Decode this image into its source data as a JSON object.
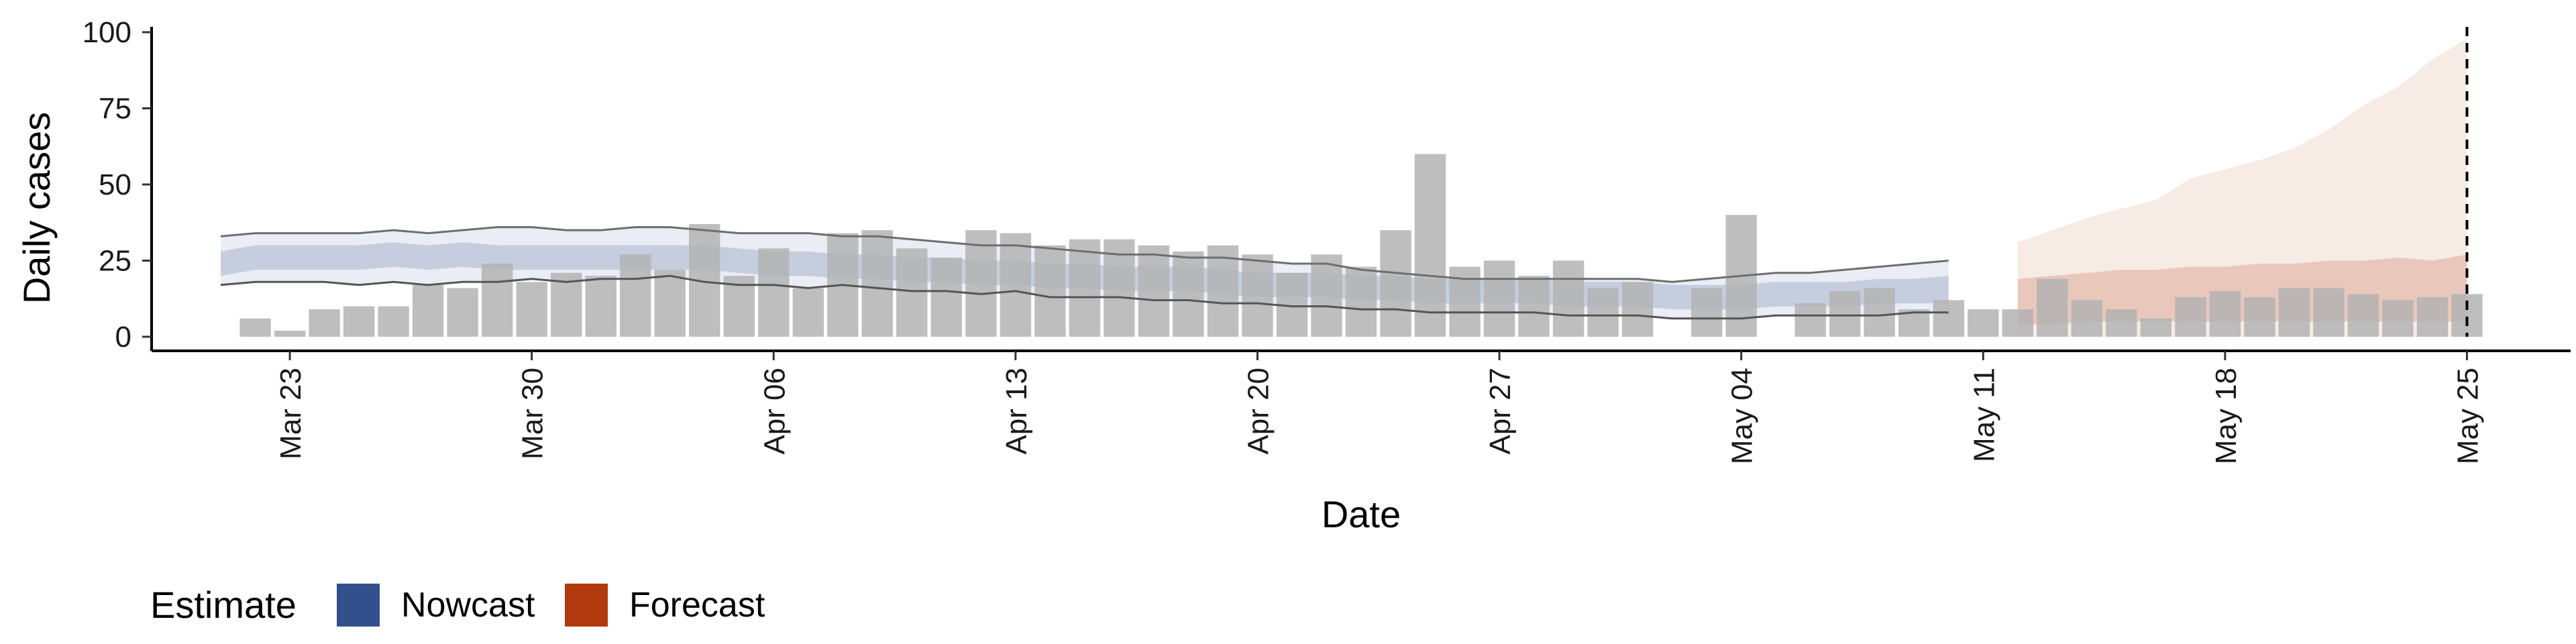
{
  "chart_data": {
    "type": "bar",
    "xlabel": "Date",
    "ylabel": "Daily cases",
    "ylim": [
      0,
      100
    ],
    "y_ticks": [
      0,
      25,
      50,
      75,
      100
    ],
    "x_range": [
      "2020-03-19",
      "2020-05-28"
    ],
    "x_ticks": [
      {
        "date": "2020-03-23",
        "label": "Mar 23"
      },
      {
        "date": "2020-03-30",
        "label": "Mar 30"
      },
      {
        "date": "2020-04-06",
        "label": "Apr 06"
      },
      {
        "date": "2020-04-13",
        "label": "Apr 13"
      },
      {
        "date": "2020-04-20",
        "label": "Apr 20"
      },
      {
        "date": "2020-04-27",
        "label": "Apr 27"
      },
      {
        "date": "2020-05-04",
        "label": "May 04"
      },
      {
        "date": "2020-05-11",
        "label": "May 11"
      },
      {
        "date": "2020-05-18",
        "label": "May 18"
      },
      {
        "date": "2020-05-25",
        "label": "May 25"
      }
    ],
    "reference_line_date": "2020-05-25",
    "grid": false,
    "legend": {
      "title": "Estimate",
      "position": "bottom-left",
      "items": [
        {
          "label": "Nowcast",
          "color": "#34508c"
        },
        {
          "label": "Forecast",
          "color": "#b2380d"
        }
      ]
    },
    "bar_color": "#b3b3b3",
    "bar_start_date": "2020-03-22",
    "bars": [
      6,
      2,
      9,
      10,
      10,
      17,
      16,
      24,
      18,
      21,
      20,
      27,
      22,
      37,
      20,
      29,
      16,
      34,
      35,
      29,
      26,
      35,
      34,
      30,
      32,
      32,
      30,
      28,
      30,
      27,
      21,
      27,
      23,
      35,
      60,
      23,
      25,
      20,
      25,
      16,
      18,
      0,
      16,
      40,
      0,
      11,
      15,
      16,
      9,
      12,
      9,
      9,
      19,
      12,
      9,
      6,
      13,
      15,
      13,
      16,
      16,
      14,
      12,
      13,
      14
    ],
    "series": [
      {
        "name": "Nowcast",
        "kind": "band",
        "color": "#34508c",
        "start_date": "2020-03-21",
        "median": [
          24,
          26,
          26,
          26,
          26,
          27,
          26,
          27,
          26,
          26,
          26,
          26,
          26,
          26,
          26,
          25,
          24,
          24,
          23,
          23,
          22,
          22,
          21,
          21,
          20,
          20,
          19,
          19,
          19,
          18,
          17,
          17,
          17,
          16,
          16,
          15,
          15,
          15,
          15,
          14,
          14,
          14,
          13,
          13,
          13,
          14,
          14,
          14,
          15,
          15,
          16
        ],
        "lower90": [
          17,
          18,
          18,
          18,
          17,
          18,
          17,
          18,
          18,
          19,
          18,
          19,
          19,
          20,
          18,
          17,
          17,
          16,
          17,
          16,
          15,
          15,
          14,
          15,
          13,
          13,
          13,
          12,
          12,
          11,
          11,
          10,
          10,
          9,
          9,
          8,
          8,
          8,
          8,
          7,
          7,
          7,
          6,
          6,
          6,
          7,
          7,
          7,
          7,
          8,
          8
        ],
        "upper90": [
          33,
          34,
          34,
          34,
          34,
          35,
          34,
          35,
          36,
          36,
          35,
          35,
          36,
          36,
          35,
          34,
          34,
          34,
          33,
          33,
          32,
          31,
          30,
          30,
          29,
          28,
          27,
          27,
          26,
          26,
          25,
          24,
          24,
          22,
          21,
          20,
          19,
          19,
          19,
          19,
          19,
          19,
          18,
          19,
          20,
          21,
          21,
          22,
          23,
          24,
          25
        ],
        "lower50": [
          20,
          22,
          22,
          22,
          22,
          23,
          22,
          23,
          22,
          22,
          22,
          22,
          22,
          22,
          22,
          21,
          20,
          20,
          19,
          19,
          18,
          18,
          17,
          17,
          16,
          16,
          15,
          15,
          15,
          14,
          13,
          13,
          13,
          12,
          12,
          11,
          11,
          11,
          11,
          10,
          10,
          10,
          9,
          9,
          9,
          10,
          10,
          10,
          11,
          11,
          11
        ],
        "upper50": [
          28,
          30,
          30,
          30,
          30,
          31,
          30,
          31,
          30,
          30,
          30,
          30,
          30,
          30,
          30,
          29,
          28,
          28,
          27,
          27,
          26,
          26,
          25,
          25,
          24,
          24,
          23,
          23,
          23,
          22,
          21,
          21,
          21,
          20,
          20,
          19,
          19,
          19,
          19,
          18,
          18,
          18,
          17,
          17,
          17,
          18,
          18,
          18,
          19,
          19,
          20
        ]
      },
      {
        "name": "Forecast",
        "kind": "band",
        "color": "#b2380d",
        "start_date": "2020-05-12",
        "median": [
          11,
          12,
          12,
          13,
          13,
          13,
          14,
          14,
          14,
          14,
          15,
          15,
          15,
          15
        ],
        "lower90": [
          0,
          0,
          0,
          0,
          0,
          0,
          0,
          0,
          0,
          0,
          0,
          0,
          0,
          0
        ],
        "upper90": [
          31,
          35,
          39,
          42,
          45,
          52,
          55,
          58,
          62,
          68,
          76,
          82,
          91,
          98
        ],
        "lower50": [
          4,
          4,
          5,
          5,
          5,
          5,
          5,
          5,
          5,
          5,
          5,
          5,
          5,
          5
        ],
        "upper50": [
          19,
          20,
          21,
          22,
          22,
          23,
          23,
          24,
          24,
          25,
          25,
          26,
          25,
          27
        ]
      }
    ]
  }
}
